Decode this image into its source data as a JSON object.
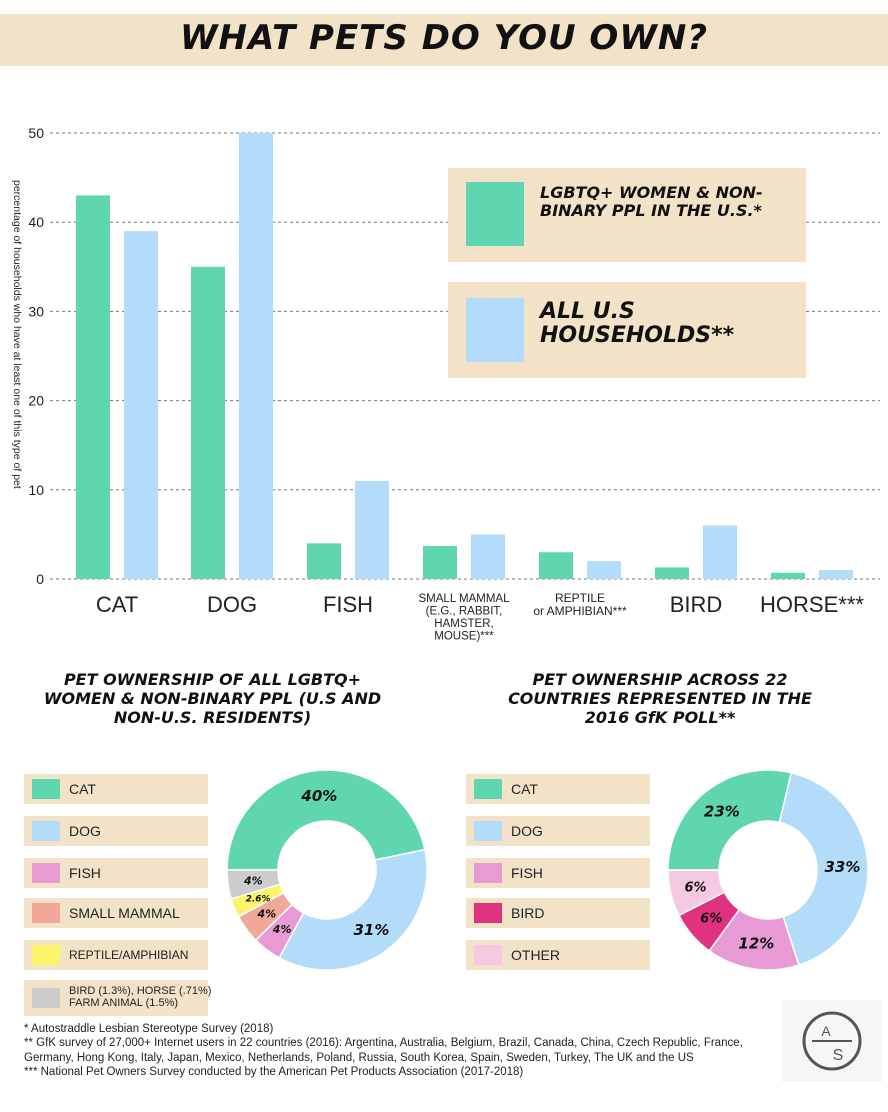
{
  "header": {
    "title": "WHAT PETS DO YOU OWN?"
  },
  "colors": {
    "lgbtq": "#5fd6b0",
    "all_us": "#b3dcfa",
    "cat": "#5fd6b0",
    "dog": "#b3dcfa",
    "fish": "#e89ad4",
    "small_mammal": "#f2a898",
    "reptile": "#fbf46a",
    "bird_horse_farm": "#cccccc",
    "bird": "#e0337f",
    "other": "#f5c9e2",
    "banner": "#f2e3c8"
  },
  "chart_data": [
    {
      "type": "bar",
      "title": "WHAT PETS DO YOU OWN?",
      "ylabel": "percentage of households who have at least one of this type of pet",
      "ylim": [
        0,
        50
      ],
      "yticks": [
        "0",
        "10",
        "20",
        "30",
        "40",
        "50"
      ],
      "categories": [
        "CAT",
        "DOG",
        "FISH",
        "SMALL MAMMAL\n(E.G., RABBIT,\nHAMSTER,\nMOUSE)***",
        "REPTILE\nor AMPHIBIAN***",
        "BIRD",
        "HORSE***"
      ],
      "series": [
        {
          "name": "LGBTQ+ WOMEN & NON-BINARY PPL IN THE U.S.*",
          "values": [
            43,
            35,
            4,
            3.7,
            3,
            1.3,
            0.7
          ]
        },
        {
          "name": "ALL U.S HOUSEHOLDS**",
          "values": [
            39,
            50,
            11,
            5,
            2,
            6,
            1
          ]
        }
      ],
      "legend": [
        "LGBTQ+ WOMEN & NON-BINARY PPL IN THE U.S.*",
        "ALL U.S HOUSEHOLDS**"
      ]
    },
    {
      "type": "pie",
      "title": "PET OWNERSHIP OF ALL LGBTQ+ WOMEN & NON-BINARY PPL (U.S AND  NON-U.S. RESIDENTS)",
      "slices": [
        {
          "label": "CAT",
          "value": 40,
          "display": "40%"
        },
        {
          "label": "DOG",
          "value": 31,
          "display": "31%"
        },
        {
          "label": "FISH",
          "value": 4,
          "display": "4%"
        },
        {
          "label": "SMALL MAMMAL",
          "value": 4,
          "display": "4%"
        },
        {
          "label": "REPTILE/AMPHIBIAN",
          "value": 2.6,
          "display": "2.6%"
        },
        {
          "label": "BIRD (1.3%), HORSE (.71%) FARM ANIMAL (1.5%)",
          "value": 4,
          "display": "4%"
        }
      ]
    },
    {
      "type": "pie",
      "title": "PET OWNERSHIP ACROSS 22 COUNTRIES REPRESENTED IN THE 2016 GfK POLL**",
      "slices": [
        {
          "label": "CAT",
          "value": 23,
          "display": "23%"
        },
        {
          "label": "DOG",
          "value": 33,
          "display": "33%"
        },
        {
          "label": "FISH",
          "value": 12,
          "display": "12%"
        },
        {
          "label": "BIRD",
          "value": 6,
          "display": "6%"
        },
        {
          "label": "OTHER",
          "value": 6,
          "display": "6%"
        }
      ]
    }
  ],
  "bar_legend": {
    "lgbtq": "LGBTQ+ WOMEN & NON-BINARY PPL IN THE U.S.*",
    "all_us": "ALL U.S HOUSEHOLDS**"
  },
  "pie1_title": "PET OWNERSHIP OF ALL LGBTQ+ WOMEN & NON-BINARY PPL (U.S AND  NON-U.S. RESIDENTS)",
  "pie2_title": "PET OWNERSHIP ACROSS 22 COUNTRIES REPRESENTED IN THE 2016 GfK POLL**",
  "pie1_legend": [
    "CAT",
    "DOG",
    "FISH",
    "SMALL MAMMAL",
    "REPTILE/AMPHIBIAN",
    "BIRD (1.3%), HORSE (.71%) FARM ANIMAL (1.5%)"
  ],
  "pie2_legend": [
    "CAT",
    "DOG",
    "FISH",
    "BIRD",
    "OTHER"
  ],
  "footnotes": [
    "*  Autostraddle Lesbian Stereotype Survey (2018)",
    "** GfK survey of 27,000+ Internet users in 22 countries (2016): Argentina, Australia, Belgium, Brazil, Canada, China, Czech Republic, France, Germany, Hong Kong, Italy, Japan, Mexico, Netherlands, Poland, Russia, South Korea, Spain, Sweden, Turkey, The UK and the US",
    "*** National Pet Owners Survey conducted by the American Pet Products Association (2017-2018)"
  ],
  "logo": {
    "top": "A",
    "bottom": "S"
  }
}
